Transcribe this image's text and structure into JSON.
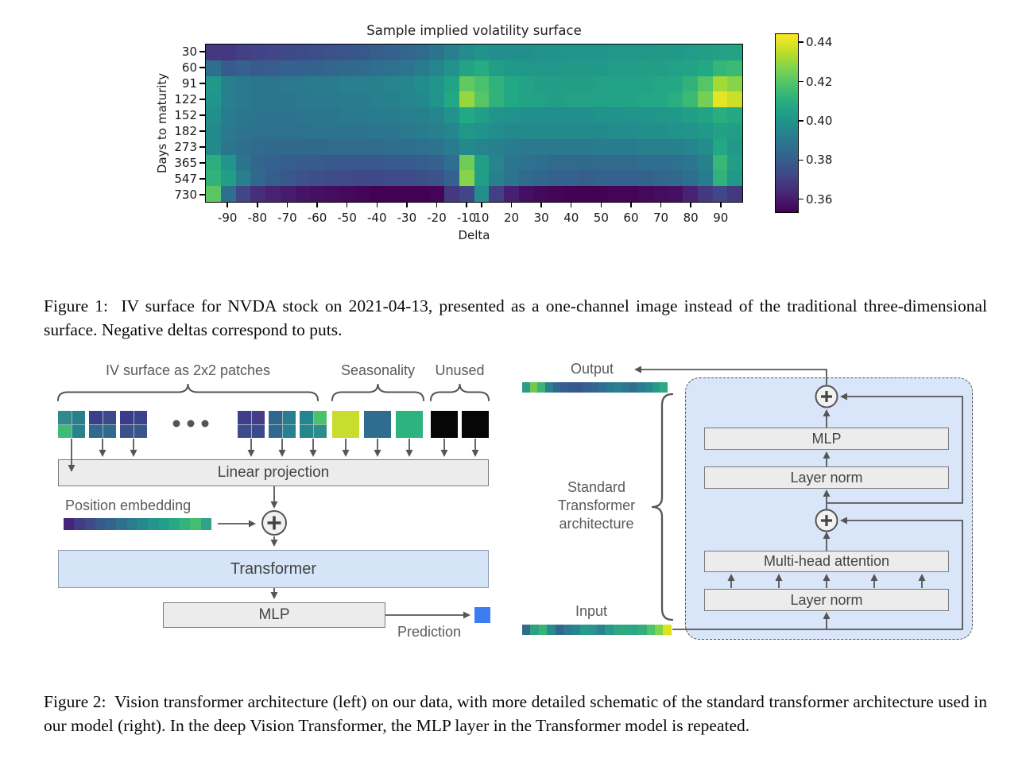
{
  "figure1": {
    "caption": "Figure 1:  IV surface for NVDA stock on 2021-04-13, presented as a one-channel image instead of the traditional three-dimensional surface. Negative deltas correspond to puts."
  },
  "chart_data": {
    "type": "heatmap",
    "title": "Sample implied volatility surface",
    "xlabel": "Delta",
    "ylabel": "Days to maturity",
    "y_categories": [
      30,
      60,
      91,
      122,
      152,
      182,
      273,
      365,
      547,
      730
    ],
    "x_deltas": [
      -95,
      -90,
      -85,
      -80,
      -75,
      -70,
      -65,
      -60,
      -55,
      -50,
      -45,
      -40,
      -35,
      -30,
      -25,
      -20,
      -15,
      -10,
      10,
      15,
      20,
      25,
      30,
      35,
      40,
      45,
      50,
      55,
      60,
      65,
      70,
      75,
      80,
      85,
      90,
      95
    ],
    "x_tick_labels": [
      -90,
      -80,
      -70,
      -60,
      -50,
      -40,
      -30,
      -20,
      -10,
      10,
      20,
      30,
      40,
      50,
      60,
      70,
      80,
      90
    ],
    "vmin": 0.353,
    "vmax": 0.4445,
    "colorbar_ticks": [
      0.44,
      0.42,
      0.4,
      0.38,
      0.36
    ],
    "colormap": "viridis",
    "colormap_anchors": [
      "#440154",
      "#482475",
      "#414487",
      "#355f8d",
      "#2a788e",
      "#21918c",
      "#22a884",
      "#44bf70",
      "#7ad151",
      "#bddf26",
      "#fde725"
    ],
    "values": [
      [
        0.368,
        0.368,
        0.37,
        0.371,
        0.372,
        0.373,
        0.374,
        0.375,
        0.376,
        0.377,
        0.378,
        0.38,
        0.381,
        0.383,
        0.385,
        0.388,
        0.392,
        0.397,
        0.399,
        0.398,
        0.398,
        0.398,
        0.399,
        0.399,
        0.4,
        0.4,
        0.4,
        0.401,
        0.401,
        0.401,
        0.402,
        0.402,
        0.403,
        0.404,
        0.405,
        0.406
      ],
      [
        0.386,
        0.379,
        0.381,
        0.379,
        0.38,
        0.381,
        0.381,
        0.382,
        0.383,
        0.384,
        0.385,
        0.386,
        0.387,
        0.389,
        0.391,
        0.394,
        0.399,
        0.406,
        0.409,
        0.404,
        0.402,
        0.401,
        0.401,
        0.401,
        0.402,
        0.402,
        0.402,
        0.403,
        0.403,
        0.404,
        0.404,
        0.405,
        0.406,
        0.408,
        0.413,
        0.415
      ],
      [
        0.402,
        0.393,
        0.39,
        0.389,
        0.389,
        0.39,
        0.39,
        0.391,
        0.391,
        0.392,
        0.392,
        0.393,
        0.394,
        0.395,
        0.397,
        0.4,
        0.406,
        0.422,
        0.418,
        0.412,
        0.408,
        0.406,
        0.404,
        0.404,
        0.404,
        0.404,
        0.405,
        0.405,
        0.405,
        0.406,
        0.407,
        0.408,
        0.412,
        0.42,
        0.432,
        0.428
      ],
      [
        0.4,
        0.392,
        0.39,
        0.389,
        0.389,
        0.389,
        0.39,
        0.39,
        0.39,
        0.391,
        0.391,
        0.392,
        0.393,
        0.394,
        0.396,
        0.4,
        0.408,
        0.43,
        0.42,
        0.412,
        0.408,
        0.406,
        0.405,
        0.404,
        0.405,
        0.405,
        0.405,
        0.406,
        0.406,
        0.407,
        0.408,
        0.41,
        0.415,
        0.425,
        0.441,
        0.437
      ],
      [
        0.398,
        0.391,
        0.389,
        0.388,
        0.388,
        0.388,
        0.389,
        0.389,
        0.389,
        0.39,
        0.39,
        0.391,
        0.391,
        0.392,
        0.393,
        0.395,
        0.399,
        0.408,
        0.404,
        0.4,
        0.399,
        0.398,
        0.398,
        0.398,
        0.398,
        0.398,
        0.399,
        0.399,
        0.4,
        0.4,
        0.401,
        0.402,
        0.404,
        0.406,
        0.41,
        0.408
      ],
      [
        0.396,
        0.39,
        0.388,
        0.387,
        0.387,
        0.387,
        0.387,
        0.388,
        0.388,
        0.388,
        0.388,
        0.389,
        0.389,
        0.39,
        0.391,
        0.392,
        0.395,
        0.401,
        0.399,
        0.397,
        0.396,
        0.396,
        0.396,
        0.396,
        0.396,
        0.396,
        0.396,
        0.397,
        0.397,
        0.398,
        0.398,
        0.399,
        0.4,
        0.402,
        0.405,
        0.404
      ],
      [
        0.396,
        0.389,
        0.386,
        0.385,
        0.384,
        0.384,
        0.384,
        0.384,
        0.385,
        0.385,
        0.385,
        0.385,
        0.386,
        0.386,
        0.387,
        0.388,
        0.391,
        0.396,
        0.394,
        0.392,
        0.391,
        0.39,
        0.39,
        0.39,
        0.39,
        0.39,
        0.391,
        0.391,
        0.391,
        0.392,
        0.392,
        0.393,
        0.394,
        0.397,
        0.408,
        0.402
      ],
      [
        0.41,
        0.4,
        0.388,
        0.383,
        0.381,
        0.38,
        0.379,
        0.379,
        0.378,
        0.378,
        0.378,
        0.378,
        0.379,
        0.379,
        0.38,
        0.381,
        0.386,
        0.424,
        0.404,
        0.394,
        0.389,
        0.387,
        0.386,
        0.385,
        0.385,
        0.384,
        0.385,
        0.385,
        0.385,
        0.386,
        0.386,
        0.387,
        0.389,
        0.393,
        0.414,
        0.404
      ],
      [
        0.412,
        0.404,
        0.392,
        0.384,
        0.38,
        0.378,
        0.376,
        0.375,
        0.374,
        0.374,
        0.373,
        0.373,
        0.374,
        0.374,
        0.375,
        0.376,
        0.381,
        0.428,
        0.404,
        0.393,
        0.388,
        0.385,
        0.383,
        0.381,
        0.381,
        0.38,
        0.381,
        0.381,
        0.381,
        0.382,
        0.383,
        0.384,
        0.386,
        0.391,
        0.412,
        0.402
      ],
      [
        0.421,
        0.386,
        0.372,
        0.365,
        0.362,
        0.36,
        0.358,
        0.357,
        0.356,
        0.355,
        0.354,
        0.353,
        0.353,
        0.353,
        0.353,
        0.354,
        0.368,
        0.372,
        0.398,
        0.37,
        0.361,
        0.357,
        0.355,
        0.354,
        0.353,
        0.353,
        0.353,
        0.354,
        0.354,
        0.355,
        0.356,
        0.357,
        0.362,
        0.368,
        0.372,
        0.368
      ]
    ]
  },
  "figure2": {
    "caption": "Figure 2:  Vision transformer architecture (left) on our data, with more detailed schematic of the standard transformer architecture used in our model (right). In the deep Vision Transformer, the MLP layer in the Transformer model is repeated.",
    "left": {
      "patches_label": "IV surface as 2x2 patches",
      "seasonality_label": "Seasonality",
      "unused_label": "Unused",
      "linear_projection_label": "Linear projection",
      "position_embedding_label": "Position embedding",
      "transformer_label": "Transformer",
      "mlp_label": "MLP",
      "prediction_label": "Prediction",
      "patches": [
        [
          "#2d8b8b",
          "#28808e",
          "#3fbc73",
          "#27838e"
        ],
        [
          "#3a3e8c",
          "#3c4a89",
          "#31688e",
          "#306b8e"
        ],
        [
          "#3a3c8b",
          "#3a428c",
          "#3b518b",
          "#39568c"
        ],
        [
          "#403e8c",
          "#443c84",
          "#3f4b8a",
          "#3b4a8b"
        ],
        [
          "#2f678e",
          "#287e8e",
          "#31688e",
          "#26828e"
        ],
        [
          "#25858e",
          "#4ac16d",
          "#24878e",
          "#2b8e8d"
        ]
      ],
      "seasonality_colors": [
        "#c8dd2e",
        "#2e6d8e",
        "#2cb37e"
      ],
      "unused_colors": [
        "#060606",
        "#060606"
      ],
      "position_bar_colors": [
        "#46247a",
        "#433b84",
        "#3e4a8a",
        "#39588c",
        "#33648d",
        "#2e718e",
        "#2a7d8e",
        "#26898e",
        "#23958b",
        "#229f88",
        "#27aa82",
        "#32b37b",
        "#45bc6f",
        "#2fa287"
      ],
      "prediction_color": "#3c7df2",
      "transformer_fill": "#d6e4f8",
      "box_fill": "#ececec"
    },
    "right": {
      "output_label": "Output",
      "input_label": "Input",
      "brace_label_lines": [
        "Standard",
        "Transformer",
        "architecture"
      ],
      "mlp_label": "MLP",
      "layer_norm_label": "Layer norm",
      "multi_head_attention_label": "Multi-head attention",
      "panel_fill": "#d9e5f9",
      "output_bar_colors": [
        "#2c9c8c",
        "#74c84f",
        "#3fb377",
        "#2c7f8e",
        "#31678e",
        "#345e8d",
        "#355a8c",
        "#35598c",
        "#34608d",
        "#32668e",
        "#2f6e8e",
        "#2c788e",
        "#2a808e",
        "#2c788e",
        "#2f6e8e",
        "#2b7d8e",
        "#28878e",
        "#259a8b",
        "#31a884"
      ],
      "input_bar_colors": [
        "#2f6d8e",
        "#2ca283",
        "#38b376",
        "#2a8b8d",
        "#30688e",
        "#2c7b8e",
        "#28858e",
        "#279a89",
        "#2b928c",
        "#28858e",
        "#2a988a",
        "#2fa583",
        "#30a981",
        "#2ba788",
        "#35ad7d",
        "#52c169",
        "#7ed34f",
        "#dce319"
      ]
    }
  }
}
